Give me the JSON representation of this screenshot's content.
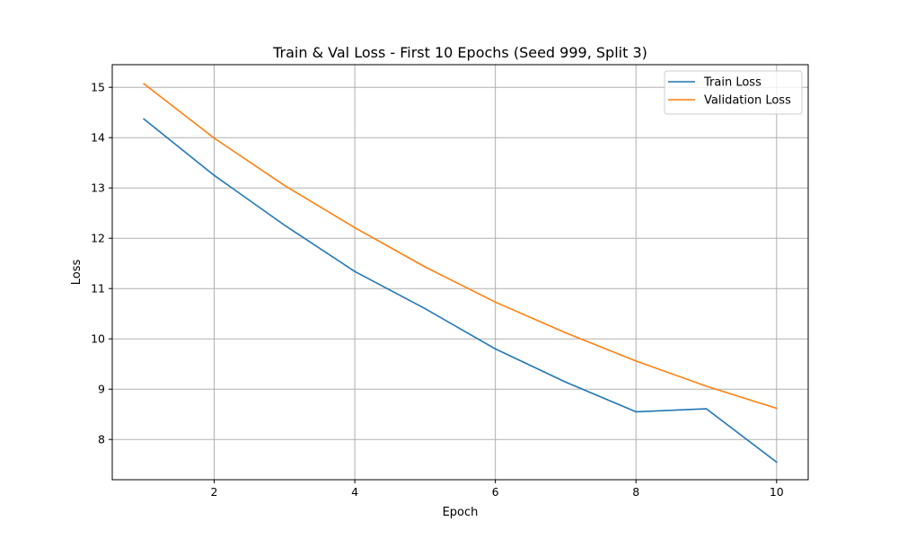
{
  "chart_data": {
    "type": "line",
    "title": "Train & Val Loss - First 10 Epochs (Seed 999, Split 3)",
    "xlabel": "Epoch",
    "ylabel": "Loss",
    "x": [
      1,
      2,
      3,
      4,
      5,
      6,
      7,
      8,
      9,
      10
    ],
    "xlim": [
      0.55,
      10.45
    ],
    "ylim": [
      7.2,
      15.45
    ],
    "xticks": [
      2,
      4,
      6,
      8,
      10
    ],
    "yticks": [
      8,
      9,
      10,
      11,
      12,
      13,
      14,
      15
    ],
    "grid": true,
    "legend_position": "top-right",
    "series": [
      {
        "name": "Train Loss",
        "color": "#1f77b4",
        "values": [
          14.37,
          13.25,
          12.26,
          11.34,
          10.6,
          9.8,
          9.14,
          8.55,
          8.61,
          7.55
        ]
      },
      {
        "name": "Validation Loss",
        "color": "#ff7f0e",
        "values": [
          15.07,
          13.99,
          13.05,
          12.21,
          11.43,
          10.73,
          10.12,
          9.56,
          9.06,
          8.62
        ]
      }
    ]
  }
}
